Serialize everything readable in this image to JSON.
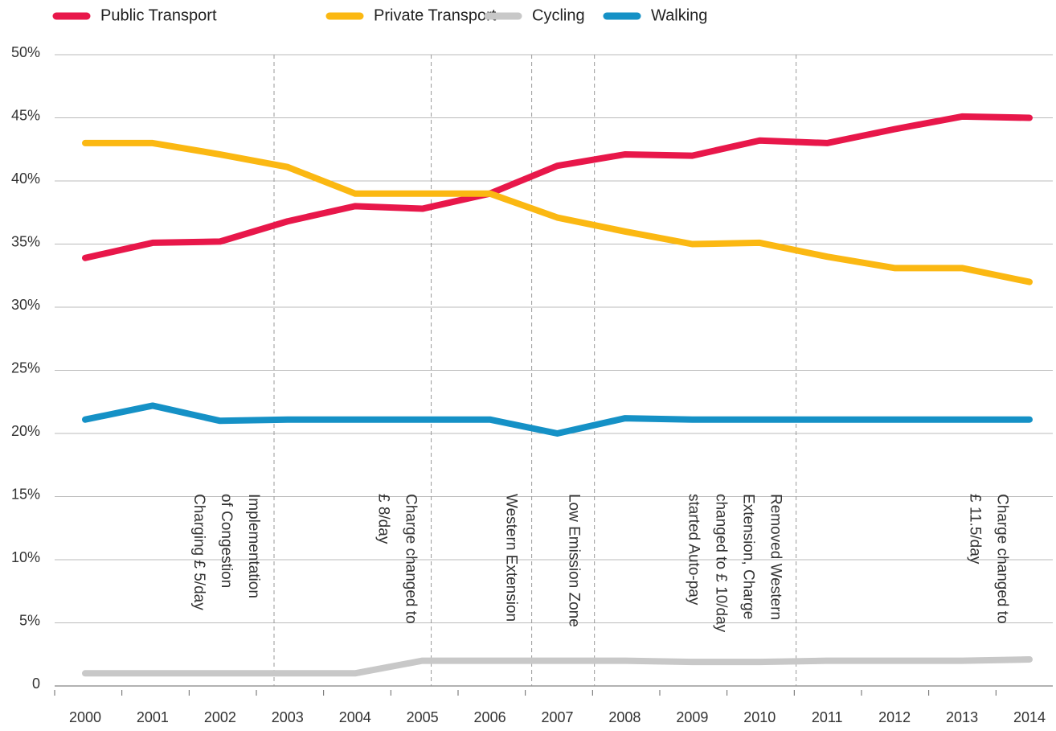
{
  "chart_data": {
    "type": "line",
    "x": [
      2000,
      2001,
      2002,
      2003,
      2004,
      2005,
      2006,
      2007,
      2008,
      2009,
      2010,
      2011,
      2012,
      2013,
      2014
    ],
    "xlim": [
      2000,
      2014
    ],
    "series": [
      {
        "name": "Public Transport",
        "color": "#e8174a",
        "values": [
          33.9,
          35.1,
          35.2,
          36.8,
          38,
          37.8,
          39,
          41.2,
          42.1,
          42,
          43.2,
          43,
          44.1,
          45.1,
          45
        ]
      },
      {
        "name": "Private Transport",
        "color": "#fbb812",
        "values": [
          43,
          43,
          42.1,
          41.1,
          39,
          39,
          39,
          37.1,
          36,
          35,
          35.1,
          34,
          33.1,
          33.1,
          32
        ]
      },
      {
        "name": "Cycling",
        "color": "#c8c8c8",
        "values": [
          1,
          1,
          1,
          1,
          1,
          2,
          2,
          2,
          2,
          1.9,
          1.9,
          2,
          2,
          2,
          2.1
        ]
      },
      {
        "name": "Walking",
        "color": "#1591c6",
        "values": [
          21.1,
          22.2,
          21,
          21.1,
          21.1,
          21.1,
          21.1,
          20,
          21.2,
          21.1,
          21.1,
          21.1,
          21.1,
          21.1,
          21.1
        ]
      }
    ],
    "ylim": [
      0,
      50
    ],
    "yticks": [
      0,
      {
        "value": 5,
        "label": "5%"
      },
      {
        "value": 10,
        "label": "10%"
      },
      {
        "value": 15,
        "label": "15%"
      },
      {
        "value": 20,
        "label": "20%"
      },
      {
        "value": 25,
        "label": "25%"
      },
      {
        "value": 30,
        "label": "30%"
      },
      {
        "value": 35,
        "label": "35%"
      },
      {
        "value": 40,
        "label": "40%"
      },
      {
        "value": 45,
        "label": "45%"
      },
      {
        "value": 50,
        "label": "50%"
      }
    ],
    "grid": true,
    "legend": "top",
    "annotations": [
      {
        "x": 2002.8,
        "dashed_line": true,
        "lines": [
          "Implementation",
          "of Congestion",
          "Charging £ 5/day"
        ]
      },
      {
        "x": 2005.13,
        "dashed_line": true,
        "lines": [
          "Charge changed to",
          "£ 8/day"
        ]
      },
      {
        "x": 2006.62,
        "dashed_line": true,
        "lines": [
          "Western Extension"
        ]
      },
      {
        "x": 2007.55,
        "dashed_line": true,
        "lines": [
          "Low Emission Zone"
        ]
      },
      {
        "x": 2010.54,
        "dashed_line": true,
        "lines": [
          "Removed Western",
          "Extension, Charge",
          "changed to £ 10/day",
          "started Auto-pay"
        ]
      },
      {
        "x": 2013.9,
        "dashed_line": false,
        "lines": [
          "Charge changed to",
          "£ 11.5/day"
        ]
      }
    ]
  }
}
